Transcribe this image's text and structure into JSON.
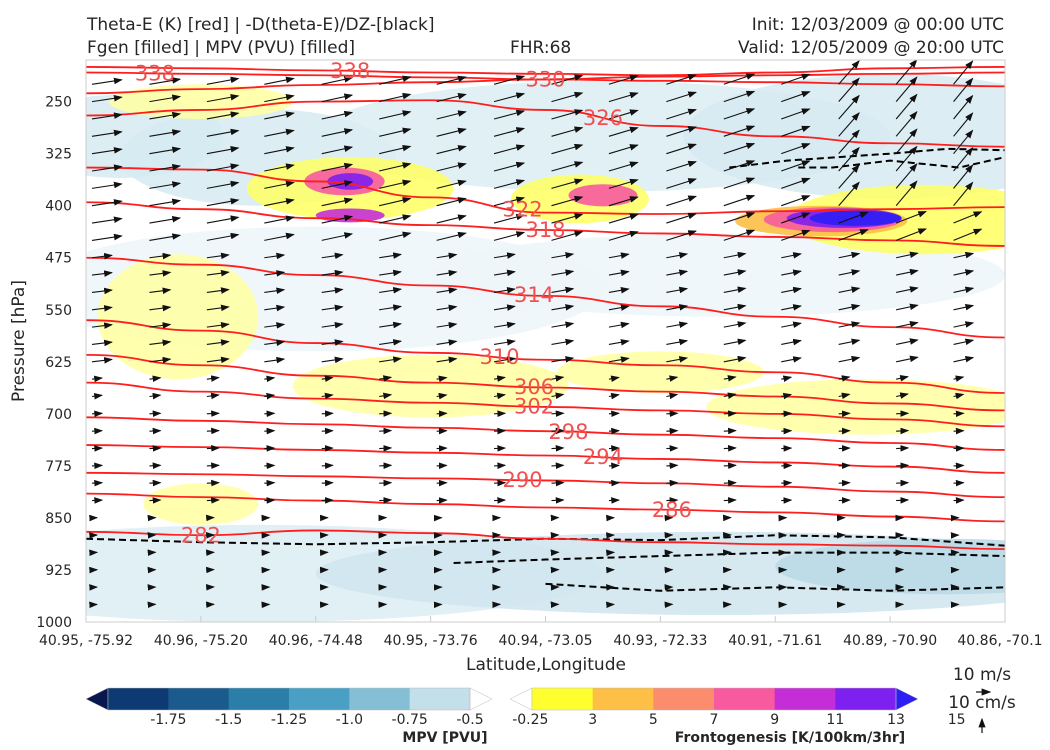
{
  "header": {
    "title_left_1": "Theta-E (K) [red] | -D(theta-E)/DZ-[black]",
    "title_left_2": "Fgen [filled] | MPV (PVU) [filled]",
    "fhr": "FHR:68",
    "init": "Init: 12/03/2009 @ 00:00 UTC",
    "valid": "Valid: 12/05/2009 @ 20:00 UTC"
  },
  "chart_data": {
    "type": "cross-section",
    "xlabel": "Latitude,Longitude",
    "ylabel": "Pressure [hPa]",
    "x_ticks": [
      "40.95, -75.92",
      "40.96, -75.20",
      "40.96, -74.48",
      "40.95, -73.76",
      "40.94, -73.05",
      "40.93, -72.33",
      "40.91, -71.61",
      "40.89, -70.90",
      "40.86, -70.1"
    ],
    "y_ticks": [
      250,
      325,
      400,
      475,
      550,
      625,
      700,
      775,
      850,
      925,
      1000
    ],
    "ylim": [
      1000,
      190
    ],
    "grid": false,
    "theta_e_contours": [
      {
        "label": "338",
        "pressure": [
          208,
          210,
          212,
          215,
          218,
          220,
          222,
          225,
          228
        ]
      },
      {
        "label": "338",
        "pressure": [
          200,
          202,
          205,
          208,
          210,
          212,
          208,
          202,
          200
        ]
      },
      {
        "label": "330",
        "pressure": [
          238,
          232,
          226,
          222,
          218,
          214,
          212,
          210,
          208
        ]
      },
      {
        "label": "326",
        "pressure": [
          270,
          262,
          250,
          248,
          262,
          285,
          300,
          310,
          315
        ]
      },
      {
        "label": "322",
        "pressure": [
          345,
          348,
          365,
          388,
          410,
          412,
          408,
          405,
          402
        ]
      },
      {
        "label": "318",
        "pressure": [
          395,
          405,
          418,
          428,
          435,
          440,
          445,
          450,
          458
        ]
      },
      {
        "label": "314",
        "pressure": [
          475,
          485,
          500,
          515,
          530,
          545,
          560,
          575,
          590
        ]
      },
      {
        "label": "310",
        "pressure": [
          565,
          580,
          598,
          612,
          622,
          630,
          640,
          655,
          670
        ]
      },
      {
        "label": "306",
        "pressure": [
          615,
          630,
          645,
          655,
          662,
          668,
          675,
          685,
          695
        ]
      },
      {
        "label": "302",
        "pressure": [
          655,
          668,
          678,
          684,
          690,
          695,
          700,
          708,
          718
        ]
      },
      {
        "label": "298",
        "pressure": [
          705,
          710,
          715,
          720,
          725,
          730,
          735,
          742,
          752
        ]
      },
      {
        "label": "294",
        "pressure": [
          745,
          748,
          752,
          756,
          760,
          765,
          770,
          776,
          785
        ]
      },
      {
        "label": "290",
        "pressure": [
          785,
          787,
          790,
          793,
          796,
          800,
          805,
          812,
          820
        ]
      },
      {
        "label": "286",
        "pressure": [
          815,
          820,
          825,
          830,
          835,
          838,
          842,
          848,
          855
        ]
      },
      {
        "label": "282",
        "pressure": [
          870,
          875,
          868,
          872,
          880,
          885,
          888,
          890,
          895
        ]
      }
    ],
    "mpv_colorbar": {
      "title": "MPV [PVU]",
      "levels": [
        -1.75,
        -1.5,
        -1.25,
        -1.0,
        -0.75,
        -0.5,
        -0.25
      ],
      "tick_labels": [
        "-1.75",
        "-1.5",
        "-1.25",
        "-1.0",
        "-0.75",
        "-0.5",
        "-0.25"
      ],
      "colors": [
        "#08184f",
        "#0d3a73",
        "#1a5a8c",
        "#2a7ea8",
        "#4aa0c4",
        "#84bfd6",
        "#c2dfea",
        "#ffffff"
      ]
    },
    "fgen_colorbar": {
      "title": "Frontogenesis [K/100km/3hr]",
      "levels": [
        3,
        5,
        7,
        9,
        11,
        13,
        15
      ],
      "tick_labels": [
        "3",
        "5",
        "7",
        "9",
        "11",
        "13",
        "15"
      ],
      "colors": [
        "#ffffff",
        "#ffff30",
        "#fdbf45",
        "#fb8c6e",
        "#f75a9e",
        "#c42ed6",
        "#7d20f0",
        "#2b1ff5"
      ]
    },
    "wind_key": {
      "horizontal": "10 m/s",
      "vertical": "10 cm/s"
    },
    "colors": {
      "theta_e": "#ff1e1e",
      "neg_dthetae_dz": "#000000",
      "contour_label": "#f05050"
    }
  }
}
